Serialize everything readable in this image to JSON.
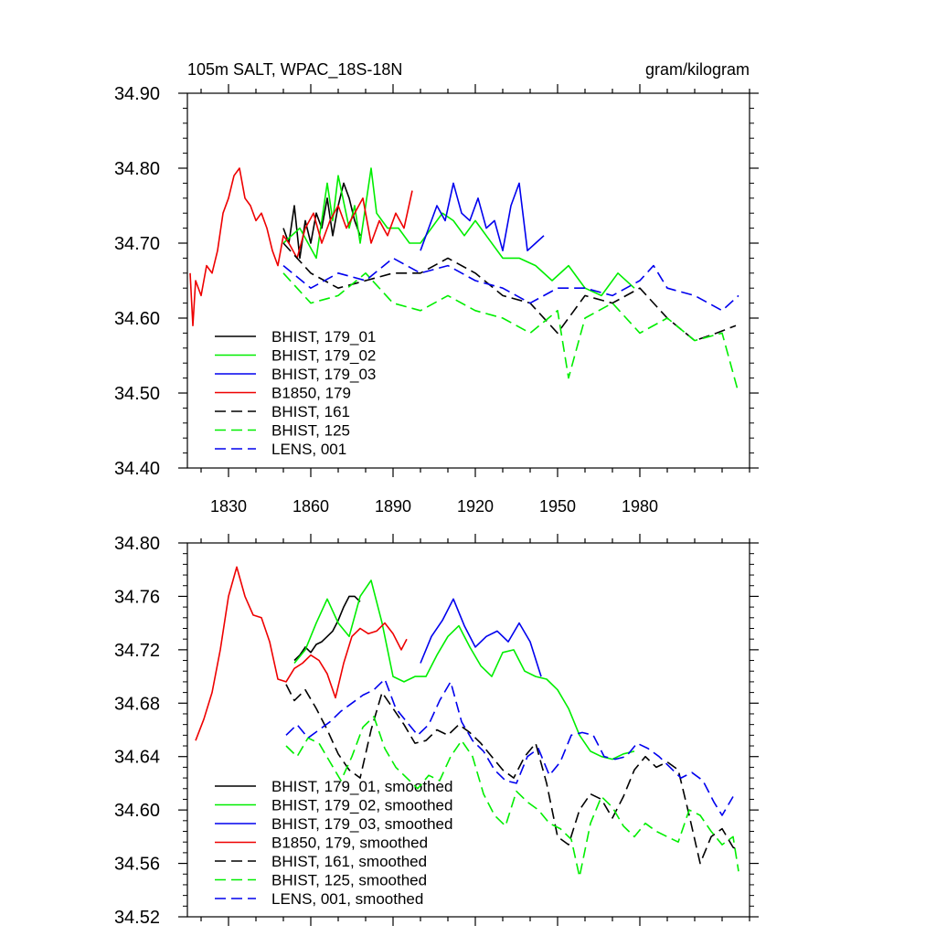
{
  "chart_data": [
    {
      "type": "line",
      "title": "105m SALT, WPAC_18S-18N",
      "units": "gram/kilogram",
      "xlim": [
        1815,
        2020
      ],
      "ylim": [
        34.4,
        34.9
      ],
      "x_ticks": [
        1830,
        1860,
        1890,
        1920,
        1950,
        1980
      ],
      "y_ticks": [
        "34.40",
        "34.50",
        "34.60",
        "34.70",
        "34.80",
        "34.90"
      ],
      "legend_position": "bottom-left",
      "series": [
        {
          "name": "BHIST, 179_01",
          "color": "#000000",
          "dash": "solid",
          "x": [
            1850,
            1852,
            1854,
            1856,
            1858,
            1860,
            1862,
            1864,
            1866,
            1868,
            1870,
            1872,
            1874,
            1876,
            1878
          ],
          "y": [
            34.72,
            34.7,
            34.75,
            34.68,
            34.73,
            34.7,
            34.74,
            34.72,
            34.76,
            34.71,
            34.75,
            34.78,
            34.76,
            34.73,
            34.71
          ]
        },
        {
          "name": "BHIST, 179_02",
          "color": "#00ee00",
          "dash": "solid",
          "x": [
            1850,
            1856,
            1862,
            1866,
            1868,
            1870,
            1874,
            1876,
            1878,
            1882,
            1884,
            1888,
            1892,
            1896,
            1900,
            1904,
            1908,
            1912,
            1916,
            1920,
            1924,
            1930,
            1936,
            1942,
            1948,
            1954,
            1960,
            1966,
            1972,
            1978
          ],
          "y": [
            34.7,
            34.72,
            34.68,
            34.78,
            34.73,
            34.79,
            34.72,
            34.75,
            34.7,
            34.8,
            34.74,
            34.72,
            34.72,
            34.7,
            34.7,
            34.72,
            34.74,
            34.73,
            34.71,
            34.73,
            34.71,
            34.68,
            34.68,
            34.67,
            34.65,
            34.67,
            34.64,
            34.63,
            34.66,
            34.64
          ]
        },
        {
          "name": "BHIST, 179_03",
          "color": "#0000ee",
          "dash": "solid",
          "x": [
            1900,
            1903,
            1906,
            1909,
            1912,
            1915,
            1918,
            1921,
            1924,
            1927,
            1930,
            1933,
            1936,
            1939,
            1942,
            1945
          ],
          "y": [
            34.69,
            34.72,
            34.75,
            34.73,
            34.78,
            34.74,
            34.73,
            34.76,
            34.72,
            34.73,
            34.69,
            34.75,
            34.78,
            34.69,
            34.7,
            34.71
          ]
        },
        {
          "name": "B1850, 179",
          "color": "#ee0000",
          "dash": "solid",
          "x": [
            1816,
            1817,
            1818,
            1820,
            1822,
            1824,
            1826,
            1828,
            1830,
            1832,
            1834,
            1836,
            1838,
            1840,
            1842,
            1844,
            1846,
            1848,
            1850,
            1852,
            1855,
            1858,
            1861,
            1864,
            1867,
            1870,
            1873,
            1876,
            1879,
            1882,
            1885,
            1888,
            1891,
            1894,
            1897
          ],
          "y": [
            34.66,
            34.59,
            34.65,
            34.63,
            34.67,
            34.66,
            34.69,
            34.74,
            34.76,
            34.79,
            34.8,
            34.76,
            34.75,
            34.73,
            34.74,
            34.72,
            34.69,
            34.67,
            34.71,
            34.7,
            34.68,
            34.72,
            34.74,
            34.7,
            34.73,
            34.75,
            34.72,
            34.74,
            34.76,
            34.7,
            34.73,
            34.71,
            34.74,
            34.72,
            34.77
          ]
        },
        {
          "name": "BHIST, 161",
          "color": "#000000",
          "dash": "dashed",
          "x": [
            1850,
            1860,
            1870,
            1880,
            1890,
            1900,
            1910,
            1920,
            1930,
            1940,
            1950,
            1960,
            1970,
            1980,
            1990,
            2000,
            2008,
            2015
          ],
          "y": [
            34.7,
            34.66,
            34.64,
            34.65,
            34.66,
            34.66,
            34.68,
            34.66,
            34.63,
            34.62,
            34.58,
            34.63,
            34.62,
            34.64,
            34.6,
            34.57,
            34.58,
            34.59
          ]
        },
        {
          "name": "BHIST, 125",
          "color": "#00ee00",
          "dash": "dashed",
          "x": [
            1850,
            1860,
            1870,
            1880,
            1890,
            1900,
            1910,
            1920,
            1930,
            1940,
            1950,
            1954,
            1960,
            1970,
            1980,
            1990,
            2000,
            2010,
            2016
          ],
          "y": [
            34.66,
            34.62,
            34.63,
            34.66,
            34.62,
            34.61,
            34.63,
            34.61,
            34.6,
            34.58,
            34.61,
            34.52,
            34.6,
            34.62,
            34.58,
            34.6,
            34.57,
            34.58,
            34.5
          ]
        },
        {
          "name": "LENS, 001",
          "color": "#0000ee",
          "dash": "dashed",
          "x": [
            1850,
            1860,
            1870,
            1880,
            1890,
            1900,
            1910,
            1920,
            1930,
            1940,
            1950,
            1960,
            1970,
            1980,
            1985,
            1990,
            2000,
            2010,
            2016
          ],
          "y": [
            34.67,
            34.64,
            34.66,
            34.65,
            34.68,
            34.66,
            34.67,
            34.65,
            34.64,
            34.62,
            34.64,
            34.64,
            34.63,
            34.65,
            34.67,
            34.64,
            34.63,
            34.61,
            34.63
          ]
        }
      ]
    },
    {
      "type": "line",
      "xlim": [
        1815,
        2020
      ],
      "ylim": [
        34.52,
        34.8
      ],
      "y_ticks": [
        "34.52",
        "34.56",
        "34.60",
        "34.64",
        "34.68",
        "34.72",
        "34.76",
        "34.80"
      ],
      "legend_position": "bottom-left",
      "series": [
        {
          "name": "BHIST, 179_01, smoothed",
          "color": "#000000",
          "dash": "solid",
          "x": [
            1854,
            1856,
            1858,
            1860,
            1862,
            1864,
            1866,
            1868,
            1870,
            1872,
            1874,
            1876,
            1878
          ],
          "y": [
            34.712,
            34.716,
            34.722,
            34.718,
            34.724,
            34.726,
            34.73,
            34.734,
            34.742,
            34.752,
            34.76,
            34.76,
            34.756
          ]
        },
        {
          "name": "BHIST, 179_02, smoothed",
          "color": "#00ee00",
          "dash": "solid",
          "x": [
            1854,
            1858,
            1862,
            1866,
            1870,
            1874,
            1878,
            1882,
            1886,
            1890,
            1894,
            1898,
            1902,
            1906,
            1910,
            1914,
            1918,
            1922,
            1926,
            1930,
            1934,
            1938,
            1942,
            1946,
            1950,
            1954,
            1958,
            1962,
            1966,
            1970,
            1974,
            1978
          ],
          "y": [
            34.71,
            34.72,
            34.74,
            34.758,
            34.74,
            34.73,
            34.76,
            34.772,
            34.74,
            34.7,
            34.696,
            34.7,
            34.7,
            34.716,
            34.73,
            34.738,
            34.722,
            34.708,
            34.7,
            34.718,
            34.72,
            34.704,
            34.7,
            34.698,
            34.69,
            34.676,
            34.656,
            34.644,
            34.64,
            34.638,
            34.642,
            34.644
          ]
        },
        {
          "name": "BHIST, 179_03, smoothed",
          "color": "#0000ee",
          "dash": "solid",
          "x": [
            1900,
            1904,
            1908,
            1912,
            1916,
            1920,
            1924,
            1928,
            1932,
            1936,
            1940,
            1944
          ],
          "y": [
            34.71,
            34.73,
            34.742,
            34.758,
            34.738,
            34.722,
            34.73,
            34.734,
            34.726,
            34.74,
            34.726,
            34.7
          ]
        },
        {
          "name": "B1850, 179, smoothed",
          "color": "#ee0000",
          "dash": "solid",
          "x": [
            1818,
            1821,
            1824,
            1827,
            1830,
            1833,
            1836,
            1839,
            1842,
            1845,
            1848,
            1851,
            1854,
            1857,
            1860,
            1863,
            1866,
            1869,
            1872,
            1875,
            1878,
            1881,
            1884,
            1887,
            1890,
            1893,
            1895
          ],
          "y": [
            34.652,
            34.668,
            34.688,
            34.72,
            34.76,
            34.782,
            34.76,
            34.746,
            34.744,
            34.726,
            34.698,
            34.696,
            34.706,
            34.71,
            34.716,
            34.712,
            34.702,
            34.684,
            34.71,
            34.73,
            34.736,
            34.732,
            34.734,
            34.74,
            34.732,
            34.72,
            34.728
          ]
        },
        {
          "name": "BHIST, 161, smoothed",
          "color": "#000000",
          "dash": "dashed",
          "x": [
            1851,
            1854,
            1858,
            1862,
            1866,
            1870,
            1874,
            1878,
            1882,
            1886,
            1890,
            1894,
            1898,
            1902,
            1906,
            1910,
            1914,
            1918,
            1922,
            1926,
            1930,
            1934,
            1938,
            1942,
            1946,
            1950,
            1954,
            1958,
            1962,
            1966,
            1970,
            1974,
            1978,
            1982,
            1986,
            1990,
            1994,
            1998,
            2002,
            2006,
            2010,
            2014,
            2016
          ],
          "y": [
            34.694,
            34.682,
            34.69,
            34.676,
            34.66,
            34.642,
            34.63,
            34.624,
            34.66,
            34.688,
            34.676,
            34.664,
            34.65,
            34.652,
            34.66,
            34.656,
            34.664,
            34.658,
            34.65,
            34.64,
            34.63,
            34.624,
            34.64,
            34.65,
            34.62,
            34.58,
            34.574,
            34.6,
            34.612,
            34.608,
            34.594,
            34.61,
            34.63,
            34.64,
            34.632,
            34.636,
            34.63,
            34.596,
            34.56,
            34.58,
            34.586,
            34.572,
            34.57
          ]
        },
        {
          "name": "BHIST, 125, smoothed",
          "color": "#00ee00",
          "dash": "dashed",
          "x": [
            1851,
            1855,
            1859,
            1863,
            1867,
            1871,
            1875,
            1879,
            1883,
            1887,
            1891,
            1895,
            1899,
            1903,
            1907,
            1911,
            1915,
            1919,
            1923,
            1927,
            1931,
            1935,
            1939,
            1943,
            1947,
            1951,
            1955,
            1958,
            1962,
            1966,
            1970,
            1974,
            1978,
            1982,
            1986,
            1990,
            1994,
            1998,
            2002,
            2006,
            2010,
            2014,
            2016
          ],
          "y": [
            34.648,
            34.64,
            34.654,
            34.65,
            34.636,
            34.622,
            34.64,
            34.662,
            34.67,
            34.646,
            34.632,
            34.624,
            34.616,
            34.626,
            34.622,
            34.64,
            34.652,
            34.64,
            34.612,
            34.596,
            34.588,
            34.614,
            34.606,
            34.6,
            34.59,
            34.586,
            34.578,
            34.55,
            34.59,
            34.61,
            34.602,
            34.588,
            34.58,
            34.59,
            34.584,
            34.58,
            34.576,
            34.6,
            34.596,
            34.584,
            34.574,
            34.58,
            34.554
          ]
        },
        {
          "name": "LENS, 001, smoothed",
          "color": "#0000ee",
          "dash": "dashed",
          "x": [
            1851,
            1855,
            1859,
            1863,
            1867,
            1871,
            1875,
            1879,
            1883,
            1887,
            1891,
            1895,
            1899,
            1903,
            1907,
            1911,
            1915,
            1919,
            1923,
            1927,
            1931,
            1935,
            1939,
            1943,
            1947,
            1951,
            1955,
            1959,
            1963,
            1967,
            1971,
            1975,
            1979,
            1983,
            1987,
            1991,
            1995,
            1999,
            2003,
            2007,
            2010,
            2014
          ],
          "y": [
            34.656,
            34.664,
            34.654,
            34.66,
            34.666,
            34.674,
            34.68,
            34.686,
            34.69,
            34.698,
            34.676,
            34.666,
            34.656,
            34.664,
            34.682,
            34.696,
            34.666,
            34.652,
            34.644,
            34.63,
            34.622,
            34.62,
            34.64,
            34.646,
            34.626,
            34.636,
            34.656,
            34.658,
            34.656,
            34.64,
            34.638,
            34.64,
            34.65,
            34.646,
            34.64,
            34.632,
            34.624,
            34.628,
            34.622,
            34.606,
            34.596,
            34.61
          ]
        }
      ]
    }
  ]
}
